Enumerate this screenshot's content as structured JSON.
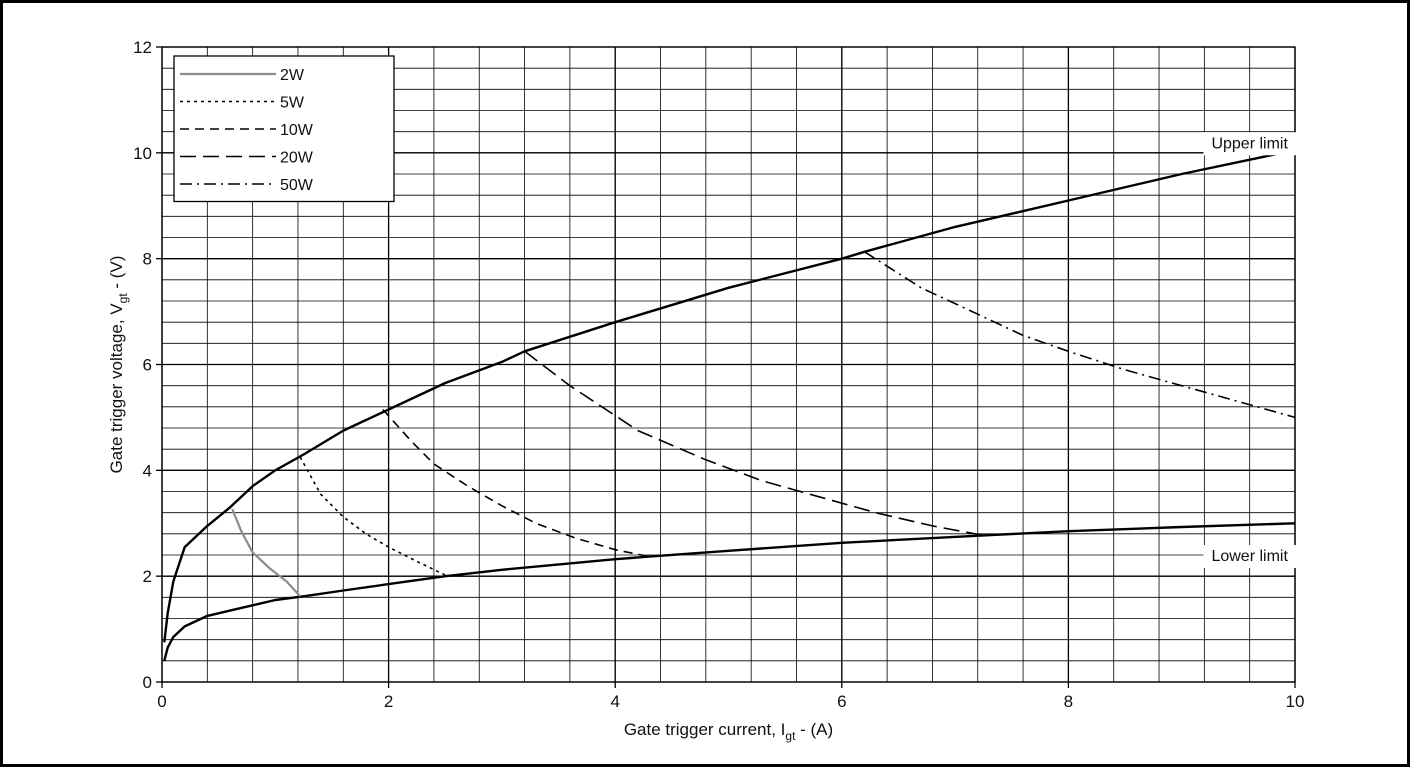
{
  "chart_data": {
    "type": "line",
    "xlabel": {
      "main": "Gate trigger current, I",
      "sub": "gt",
      "tail": " - (A)"
    },
    "ylabel": {
      "main": "Gate trigger voltage, V",
      "sub": "gt",
      "tail": " - (V)"
    },
    "xlim": [
      0,
      10
    ],
    "ylim": [
      0,
      12
    ],
    "x_major_ticks": [
      0,
      2,
      4,
      6,
      8,
      10
    ],
    "y_major_ticks": [
      0,
      2,
      4,
      6,
      8,
      10,
      12
    ],
    "x_tick_labels": [
      "0",
      "2",
      "4",
      "6",
      "8",
      "10"
    ],
    "y_tick_labels": [
      "0",
      "2",
      "4",
      "6",
      "8",
      "10",
      "12"
    ],
    "x_minor_step": 0.4,
    "y_minor_step": 0.4,
    "grid": true,
    "legend_position": "top-left",
    "limits": [
      {
        "name": "Upper limit",
        "points": [
          [
            0.02,
            0.75
          ],
          [
            0.05,
            1.3
          ],
          [
            0.1,
            1.9
          ],
          [
            0.2,
            2.55
          ],
          [
            0.4,
            2.95
          ],
          [
            0.6,
            3.3
          ],
          [
            0.8,
            3.7
          ],
          [
            1.0,
            4.0
          ],
          [
            1.25,
            4.3
          ],
          [
            1.6,
            4.75
          ],
          [
            2.0,
            5.15
          ],
          [
            2.5,
            5.65
          ],
          [
            3.0,
            6.05
          ],
          [
            3.2,
            6.25
          ],
          [
            4.0,
            6.8
          ],
          [
            5.0,
            7.45
          ],
          [
            6.0,
            8.0
          ],
          [
            6.2,
            8.13
          ],
          [
            7.0,
            8.6
          ],
          [
            8.0,
            9.1
          ],
          [
            9.0,
            9.6
          ],
          [
            10.0,
            10.05
          ]
        ]
      },
      {
        "name": "Lower limit",
        "points": [
          [
            0.02,
            0.4
          ],
          [
            0.05,
            0.65
          ],
          [
            0.1,
            0.85
          ],
          [
            0.2,
            1.05
          ],
          [
            0.4,
            1.25
          ],
          [
            0.6,
            1.35
          ],
          [
            0.8,
            1.45
          ],
          [
            1.0,
            1.55
          ],
          [
            1.25,
            1.62
          ],
          [
            1.6,
            1.73
          ],
          [
            2.0,
            1.85
          ],
          [
            2.5,
            2.0
          ],
          [
            3.0,
            2.12
          ],
          [
            4.0,
            2.32
          ],
          [
            4.3,
            2.37
          ],
          [
            5.0,
            2.48
          ],
          [
            6.0,
            2.63
          ],
          [
            7.25,
            2.77
          ],
          [
            8.0,
            2.85
          ],
          [
            9.0,
            2.93
          ],
          [
            10.0,
            3.0
          ]
        ]
      }
    ],
    "series": [
      {
        "name": "2W",
        "color": "#8c8c8c",
        "dash": "solid",
        "points": [
          [
            0.62,
            3.27
          ],
          [
            0.7,
            2.85
          ],
          [
            0.8,
            2.45
          ],
          [
            0.95,
            2.15
          ],
          [
            1.1,
            1.9
          ],
          [
            1.22,
            1.62
          ]
        ]
      },
      {
        "name": "5W",
        "dash": "dotted",
        "points": [
          [
            1.22,
            4.25
          ],
          [
            1.4,
            3.55
          ],
          [
            1.6,
            3.12
          ],
          [
            1.8,
            2.8
          ],
          [
            2.0,
            2.55
          ],
          [
            2.25,
            2.28
          ],
          [
            2.5,
            2.02
          ]
        ]
      },
      {
        "name": "10W",
        "dash": "dash-short",
        "points": [
          [
            1.95,
            5.15
          ],
          [
            2.2,
            4.55
          ],
          [
            2.4,
            4.12
          ],
          [
            2.7,
            3.7
          ],
          [
            3.0,
            3.33
          ],
          [
            3.3,
            3.0
          ],
          [
            3.65,
            2.72
          ],
          [
            4.0,
            2.5
          ],
          [
            4.3,
            2.37
          ]
        ]
      },
      {
        "name": "20W",
        "dash": "dash-long",
        "points": [
          [
            3.2,
            6.25
          ],
          [
            3.6,
            5.6
          ],
          [
            4.2,
            4.75
          ],
          [
            4.8,
            4.2
          ],
          [
            5.3,
            3.8
          ],
          [
            5.8,
            3.5
          ],
          [
            6.3,
            3.2
          ],
          [
            6.8,
            2.95
          ],
          [
            7.25,
            2.77
          ]
        ]
      },
      {
        "name": "50W",
        "dash": "dash-dot",
        "points": [
          [
            6.2,
            8.13
          ],
          [
            6.7,
            7.45
          ],
          [
            7.2,
            6.95
          ],
          [
            7.6,
            6.55
          ],
          [
            8.0,
            6.25
          ],
          [
            8.5,
            5.9
          ],
          [
            9.0,
            5.6
          ],
          [
            9.5,
            5.3
          ],
          [
            10.0,
            5.0
          ]
        ]
      }
    ],
    "annotations": [
      {
        "text": "Upper limit",
        "x": 9.6,
        "y": 10.2
      },
      {
        "text": "Lower limit",
        "x": 9.6,
        "y": 2.4
      }
    ]
  }
}
